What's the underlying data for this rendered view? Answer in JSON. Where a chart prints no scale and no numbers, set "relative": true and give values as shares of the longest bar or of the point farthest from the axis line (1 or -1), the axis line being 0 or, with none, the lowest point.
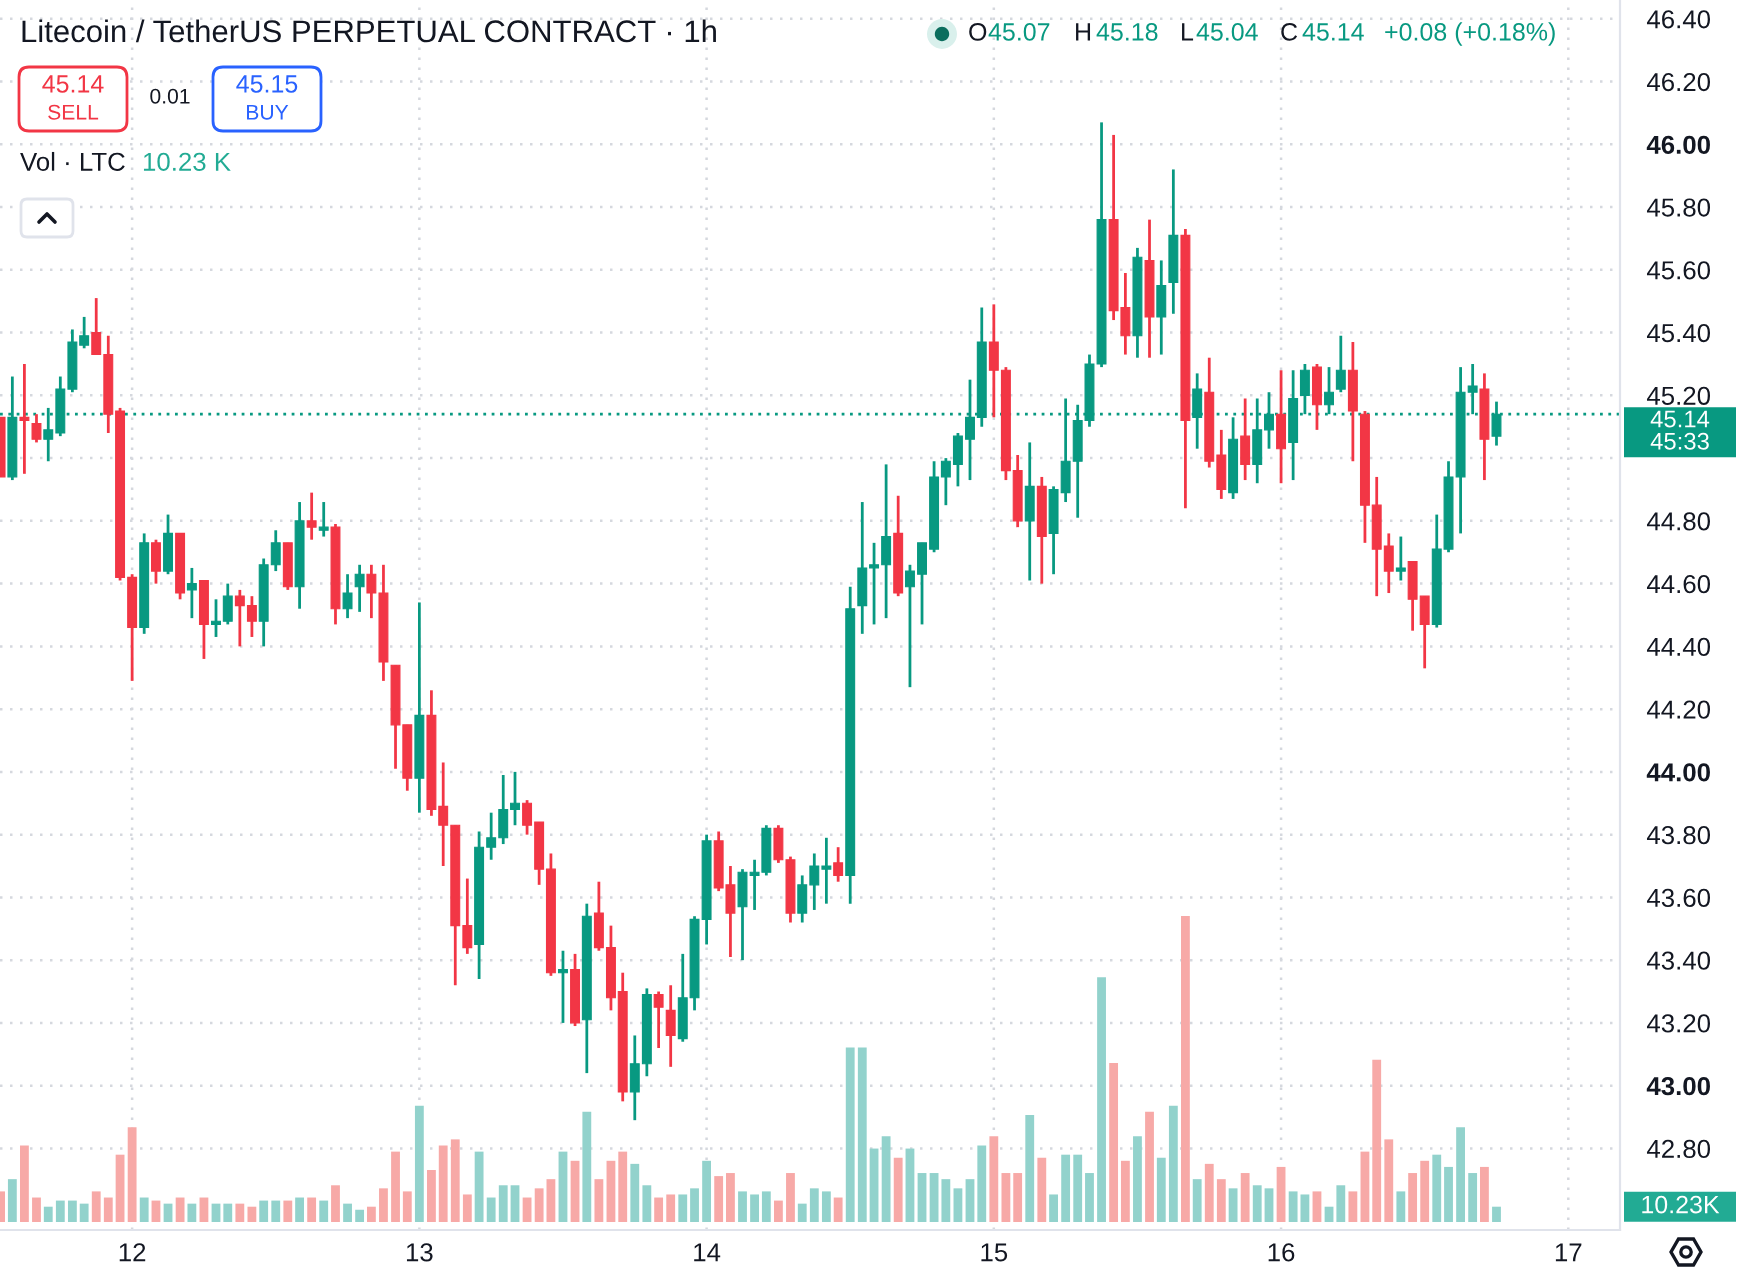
{
  "chart_data": [
    {
      "type": "candlestick",
      "title": "Litecoin / TetherUS PERPETUAL CONTRACT · 1h",
      "x": [
        11.542,
        11.583,
        11.625,
        11.667,
        11.708,
        11.75,
        11.792,
        11.833,
        11.875,
        11.917,
        11.958,
        12,
        12.042,
        12.083,
        12.125,
        12.167,
        12.208,
        12.25,
        12.292,
        12.333,
        12.375,
        12.417,
        12.458,
        12.5,
        12.542,
        12.583,
        12.625,
        12.667,
        12.708,
        12.75,
        12.792,
        12.833,
        12.875,
        12.917,
        12.958,
        13,
        13.042,
        13.083,
        13.125,
        13.167,
        13.208,
        13.25,
        13.292,
        13.333,
        13.375,
        13.417,
        13.458,
        13.5,
        13.542,
        13.583,
        13.625,
        13.667,
        13.708,
        13.75,
        13.792,
        13.833,
        13.875,
        13.917,
        13.958,
        14,
        14.042,
        14.083,
        14.125,
        14.167,
        14.208,
        14.25,
        14.292,
        14.333,
        14.375,
        14.417,
        14.458,
        14.5,
        14.542,
        14.583,
        14.625,
        14.667,
        14.708,
        14.75,
        14.792,
        14.833,
        14.875,
        14.917,
        14.958,
        15,
        15.042,
        15.083,
        15.125,
        15.167,
        15.208,
        15.25,
        15.292,
        15.333,
        15.375,
        15.417,
        15.458,
        15.5,
        15.542,
        15.583,
        15.625,
        15.667,
        15.708,
        15.75,
        15.792,
        15.833,
        15.875,
        15.917,
        15.958,
        16,
        16.042,
        16.083,
        16.125,
        16.167,
        16.208,
        16.25,
        16.292,
        16.333,
        16.375,
        16.417,
        16.458,
        16.5,
        16.542,
        16.583,
        16.625,
        16.667,
        16.708,
        16.75
      ],
      "ohlc": [
        [
          45.13,
          45.13,
          44.94,
          44.94
        ],
        [
          44.94,
          45.26,
          44.93,
          45.13
        ],
        [
          45.13,
          45.3,
          44.95,
          45.12
        ],
        [
          45.11,
          45.14,
          45.05,
          45.06
        ],
        [
          45.06,
          45.16,
          44.99,
          45.09
        ],
        [
          45.08,
          45.26,
          45.07,
          45.22
        ],
        [
          45.22,
          45.41,
          45.21,
          45.37
        ],
        [
          45.36,
          45.45,
          45.35,
          45.39
        ],
        [
          45.4,
          45.51,
          45.33,
          45.33
        ],
        [
          45.33,
          45.39,
          45.08,
          45.14
        ],
        [
          45.15,
          45.16,
          44.61,
          44.62
        ],
        [
          44.62,
          44.63,
          44.29,
          44.46
        ],
        [
          44.46,
          44.76,
          44.44,
          44.73
        ],
        [
          44.73,
          44.74,
          44.6,
          44.64
        ],
        [
          44.64,
          44.82,
          44.63,
          44.76
        ],
        [
          44.76,
          44.76,
          44.55,
          44.57
        ],
        [
          44.58,
          44.65,
          44.49,
          44.6
        ],
        [
          44.61,
          44.61,
          44.36,
          44.47
        ],
        [
          44.47,
          44.55,
          44.43,
          44.48
        ],
        [
          44.48,
          44.6,
          44.47,
          44.56
        ],
        [
          44.56,
          44.58,
          44.4,
          44.53
        ],
        [
          44.53,
          44.56,
          44.43,
          44.48
        ],
        [
          44.48,
          44.68,
          44.4,
          44.66
        ],
        [
          44.66,
          44.77,
          44.64,
          44.73
        ],
        [
          44.73,
          44.73,
          44.58,
          44.59
        ],
        [
          44.59,
          44.86,
          44.52,
          44.8
        ],
        [
          44.8,
          44.89,
          44.74,
          44.78
        ],
        [
          44.77,
          44.86,
          44.75,
          44.78
        ],
        [
          44.78,
          44.79,
          44.47,
          44.52
        ],
        [
          44.52,
          44.63,
          44.49,
          44.57
        ],
        [
          44.59,
          44.66,
          44.51,
          44.63
        ],
        [
          44.63,
          44.66,
          44.49,
          44.57
        ],
        [
          44.57,
          44.66,
          44.29,
          44.35
        ],
        [
          44.34,
          44.34,
          44.01,
          44.15
        ],
        [
          44.15,
          44.15,
          43.94,
          43.98
        ],
        [
          43.98,
          44.54,
          43.87,
          44.18
        ],
        [
          44.18,
          44.26,
          43.86,
          43.88
        ],
        [
          43.89,
          44.03,
          43.7,
          43.83
        ],
        [
          43.83,
          43.83,
          43.32,
          43.51
        ],
        [
          43.51,
          43.66,
          43.42,
          43.44
        ],
        [
          43.45,
          43.81,
          43.34,
          43.76
        ],
        [
          43.76,
          43.87,
          43.72,
          43.79
        ],
        [
          43.79,
          43.99,
          43.77,
          43.88
        ],
        [
          43.88,
          44.0,
          43.83,
          43.9
        ],
        [
          43.9,
          43.91,
          43.8,
          43.83
        ],
        [
          43.84,
          43.84,
          43.64,
          43.69
        ],
        [
          43.69,
          43.74,
          43.35,
          43.36
        ],
        [
          43.36,
          43.43,
          43.2,
          43.37
        ],
        [
          43.37,
          43.42,
          43.19,
          43.2
        ],
        [
          43.21,
          43.58,
          43.04,
          43.54
        ],
        [
          43.55,
          43.65,
          43.43,
          43.44
        ],
        [
          43.44,
          43.51,
          43.24,
          43.28
        ],
        [
          43.3,
          43.36,
          42.95,
          42.98
        ],
        [
          42.98,
          43.16,
          42.89,
          43.07
        ],
        [
          43.07,
          43.31,
          43.03,
          43.29
        ],
        [
          43.29,
          43.3,
          43.12,
          43.25
        ],
        [
          43.24,
          43.32,
          43.06,
          43.16
        ],
        [
          43.15,
          43.42,
          43.14,
          43.28
        ],
        [
          43.28,
          43.54,
          43.24,
          43.53
        ],
        [
          43.53,
          43.8,
          43.45,
          43.78
        ],
        [
          43.78,
          43.81,
          43.62,
          43.63
        ],
        [
          43.64,
          43.7,
          43.41,
          43.55
        ],
        [
          43.57,
          43.69,
          43.4,
          43.68
        ],
        [
          43.67,
          43.72,
          43.56,
          43.68
        ],
        [
          43.68,
          43.83,
          43.67,
          43.82
        ],
        [
          43.82,
          43.83,
          43.71,
          43.72
        ],
        [
          43.72,
          43.73,
          43.52,
          43.55
        ],
        [
          43.55,
          43.67,
          43.52,
          43.64
        ],
        [
          43.64,
          43.74,
          43.56,
          43.7
        ],
        [
          43.69,
          43.79,
          43.58,
          43.7
        ],
        [
          43.71,
          43.76,
          43.65,
          43.67
        ],
        [
          43.67,
          44.59,
          43.58,
          44.52
        ],
        [
          44.53,
          44.86,
          44.44,
          44.65
        ],
        [
          44.65,
          44.73,
          44.47,
          44.66
        ],
        [
          44.66,
          44.98,
          44.49,
          44.75
        ],
        [
          44.76,
          44.88,
          44.56,
          44.57
        ],
        [
          44.59,
          44.66,
          44.27,
          44.64
        ],
        [
          44.63,
          44.73,
          44.47,
          44.73
        ],
        [
          44.71,
          44.99,
          44.7,
          44.94
        ],
        [
          44.94,
          45.0,
          44.85,
          44.99
        ],
        [
          44.98,
          45.08,
          44.91,
          45.07
        ],
        [
          45.06,
          45.25,
          44.93,
          45.13
        ],
        [
          45.13,
          45.48,
          45.1,
          45.37
        ],
        [
          45.37,
          45.49,
          45.13,
          45.28
        ],
        [
          45.28,
          45.29,
          44.93,
          44.96
        ],
        [
          44.96,
          45.01,
          44.78,
          44.8
        ],
        [
          44.8,
          45.05,
          44.61,
          44.91
        ],
        [
          44.91,
          44.94,
          44.6,
          44.75
        ],
        [
          44.76,
          44.91,
          44.63,
          44.9
        ],
        [
          44.89,
          45.19,
          44.86,
          44.99
        ],
        [
          44.99,
          45.17,
          44.81,
          45.12
        ],
        [
          45.12,
          45.33,
          45.1,
          45.3
        ],
        [
          45.3,
          46.07,
          45.29,
          45.76
        ],
        [
          45.76,
          46.03,
          45.44,
          45.47
        ],
        [
          45.48,
          45.59,
          45.33,
          45.39
        ],
        [
          45.39,
          45.67,
          45.32,
          45.64
        ],
        [
          45.63,
          45.76,
          45.32,
          45.45
        ],
        [
          45.45,
          45.63,
          45.33,
          45.55
        ],
        [
          45.56,
          45.92,
          45.46,
          45.71
        ],
        [
          45.71,
          45.73,
          44.84,
          45.12
        ],
        [
          45.13,
          45.27,
          45.03,
          45.22
        ],
        [
          45.21,
          45.32,
          44.97,
          44.99
        ],
        [
          45.01,
          45.09,
          44.87,
          44.9
        ],
        [
          44.89,
          45.13,
          44.87,
          45.06
        ],
        [
          45.07,
          45.19,
          44.93,
          44.98
        ],
        [
          44.98,
          45.19,
          44.92,
          45.09
        ],
        [
          45.09,
          45.21,
          45.03,
          45.14
        ],
        [
          45.14,
          45.28,
          44.92,
          45.03
        ],
        [
          45.05,
          45.28,
          44.93,
          45.19
        ],
        [
          45.2,
          45.3,
          45.14,
          45.28
        ],
        [
          45.29,
          45.3,
          45.09,
          45.17
        ],
        [
          45.17,
          45.29,
          45.14,
          45.21
        ],
        [
          45.22,
          45.39,
          45.21,
          45.28
        ],
        [
          45.28,
          45.37,
          44.99,
          45.15
        ],
        [
          45.14,
          45.15,
          44.73,
          44.85
        ],
        [
          44.85,
          44.94,
          44.56,
          44.71
        ],
        [
          44.72,
          44.76,
          44.57,
          44.64
        ],
        [
          44.64,
          44.75,
          44.61,
          44.65
        ],
        [
          44.67,
          44.67,
          44.45,
          44.55
        ],
        [
          44.56,
          44.56,
          44.33,
          44.47
        ],
        [
          44.47,
          44.82,
          44.46,
          44.71
        ],
        [
          44.71,
          44.99,
          44.7,
          44.94
        ],
        [
          44.94,
          45.29,
          44.76,
          45.21
        ],
        [
          45.21,
          45.3,
          45.14,
          45.23
        ],
        [
          45.22,
          45.27,
          44.93,
          45.06
        ],
        [
          45.07,
          45.18,
          45.04,
          45.14
        ]
      ],
      "colors": [
        "#f23645",
        "#089981",
        "#f23645",
        "#f23645",
        "#089981",
        "#089981",
        "#089981",
        "#089981",
        "#f23645",
        "#f23645",
        "#f23645",
        "#f23645",
        "#089981",
        "#f23645",
        "#089981",
        "#f23645",
        "#089981",
        "#f23645",
        "#089981",
        "#089981",
        "#f23645",
        "#f23645",
        "#089981",
        "#089981",
        "#f23645",
        "#089981",
        "#f23645",
        "#089981",
        "#f23645",
        "#089981",
        "#089981",
        "#f23645",
        "#f23645",
        "#f23645",
        "#f23645",
        "#089981",
        "#f23645",
        "#f23645",
        "#f23645",
        "#f23645",
        "#089981",
        "#089981",
        "#089981",
        "#089981",
        "#f23645",
        "#f23645",
        "#f23645",
        "#089981",
        "#f23645",
        "#089981",
        "#f23645",
        "#f23645",
        "#f23645",
        "#089981",
        "#089981",
        "#f23645",
        "#f23645",
        "#089981",
        "#089981",
        "#089981",
        "#f23645",
        "#f23645",
        "#089981",
        "#089981",
        "#089981",
        "#f23645",
        "#f23645",
        "#089981",
        "#089981",
        "#089981",
        "#f23645",
        "#089981",
        "#089981",
        "#089981",
        "#089981",
        "#f23645",
        "#089981",
        "#089981",
        "#089981",
        "#089981",
        "#089981",
        "#089981",
        "#089981",
        "#f23645",
        "#f23645",
        "#f23645",
        "#089981",
        "#f23645",
        "#089981",
        "#089981",
        "#089981",
        "#089981",
        "#089981",
        "#f23645",
        "#f23645",
        "#089981",
        "#f23645",
        "#089981",
        "#089981",
        "#f23645",
        "#089981",
        "#f23645",
        "#f23645",
        "#089981",
        "#f23645",
        "#089981",
        "#089981",
        "#f23645",
        "#089981",
        "#089981",
        "#f23645",
        "#089981",
        "#089981",
        "#f23645",
        "#f23645",
        "#f23645",
        "#f23645",
        "#089981",
        "#f23645",
        "#f23645",
        "#089981",
        "#089981",
        "#089981",
        "#089981",
        "#f23645",
        "#089981"
      ],
      "xlim": [
        11.54,
        17.18
      ],
      "xticks": [
        12,
        13,
        14,
        15,
        16,
        17
      ],
      "ylim": [
        42.54,
        46.46
      ],
      "yticks": [
        {
          "value": 42.8,
          "label": "42.80"
        },
        {
          "value": 43.0,
          "label": "43.00"
        },
        {
          "value": 43.2,
          "label": "43.20"
        },
        {
          "value": 43.4,
          "label": "43.40"
        },
        {
          "value": 43.6,
          "label": "43.60"
        },
        {
          "value": 43.8,
          "label": "43.80"
        },
        {
          "value": 44.0,
          "label": "44.00"
        },
        {
          "value": 44.2,
          "label": "44.20"
        },
        {
          "value": 44.4,
          "label": "44.40"
        },
        {
          "value": 44.6,
          "label": "44.60"
        },
        {
          "value": 44.8,
          "label": "44.80"
        },
        {
          "value": 45.0,
          "label": null
        },
        {
          "value": 45.2,
          "label": "45.20"
        },
        {
          "value": 45.4,
          "label": "45.40"
        },
        {
          "value": 45.6,
          "label": "45.60"
        },
        {
          "value": 45.8,
          "label": "45.80"
        },
        {
          "value": 46.0,
          "label": "46.00"
        },
        {
          "value": 46.2,
          "label": "46.20"
        },
        {
          "value": 46.4,
          "label": "46.40"
        }
      ],
      "grid": true,
      "ref_lines": [
        {
          "axis": "y",
          "value": 45.14,
          "label": "45.14\n45:33",
          "color": "#089981",
          "line_style": "dotted"
        }
      ],
      "annotations": [
        "O",
        "45.07",
        "H",
        "45.18",
        "L",
        "45.04",
        "C",
        "45.14",
        "+0.08 (+0.18%)",
        "45.14",
        "SELL",
        "0.01",
        "45.15",
        "BUY"
      ]
    },
    {
      "type": "bar",
      "relative": true,
      "title": "Vol · LTC",
      "x": [
        11.542,
        11.583,
        11.625,
        11.667,
        11.708,
        11.75,
        11.792,
        11.833,
        11.875,
        11.917,
        11.958,
        12,
        12.042,
        12.083,
        12.125,
        12.167,
        12.208,
        12.25,
        12.292,
        12.333,
        12.375,
        12.417,
        12.458,
        12.5,
        12.542,
        12.583,
        12.625,
        12.667,
        12.708,
        12.75,
        12.792,
        12.833,
        12.875,
        12.917,
        12.958,
        13,
        13.042,
        13.083,
        13.125,
        13.167,
        13.208,
        13.25,
        13.292,
        13.333,
        13.375,
        13.417,
        13.458,
        13.5,
        13.542,
        13.583,
        13.625,
        13.667,
        13.708,
        13.75,
        13.792,
        13.833,
        13.875,
        13.917,
        13.958,
        14,
        14.042,
        14.083,
        14.125,
        14.167,
        14.208,
        14.25,
        14.292,
        14.333,
        14.375,
        14.417,
        14.458,
        14.5,
        14.542,
        14.583,
        14.625,
        14.667,
        14.708,
        14.75,
        14.792,
        14.833,
        14.875,
        14.917,
        14.958,
        15,
        15.042,
        15.083,
        15.125,
        15.167,
        15.208,
        15.25,
        15.292,
        15.333,
        15.375,
        15.417,
        15.458,
        15.5,
        15.542,
        15.583,
        15.625,
        15.667,
        15.708,
        15.75,
        15.792,
        15.833,
        15.875,
        15.917,
        15.958,
        16,
        16.042,
        16.083,
        16.125,
        16.167,
        16.208,
        16.25,
        16.292,
        16.333,
        16.375,
        16.417,
        16.458,
        16.5,
        16.542,
        16.583,
        16.625,
        16.667,
        16.708,
        16.75
      ],
      "values": [
        0.1,
        0.14,
        0.25,
        0.08,
        0.05,
        0.07,
        0.07,
        0.06,
        0.1,
        0.08,
        0.22,
        0.31,
        0.08,
        0.07,
        0.06,
        0.08,
        0.06,
        0.08,
        0.06,
        0.06,
        0.06,
        0.05,
        0.07,
        0.07,
        0.07,
        0.08,
        0.08,
        0.07,
        0.12,
        0.06,
        0.04,
        0.05,
        0.11,
        0.23,
        0.1,
        0.38,
        0.17,
        0.25,
        0.27,
        0.09,
        0.23,
        0.08,
        0.12,
        0.12,
        0.08,
        0.11,
        0.14,
        0.23,
        0.2,
        0.36,
        0.14,
        0.2,
        0.23,
        0.19,
        0.12,
        0.08,
        0.09,
        0.09,
        0.11,
        0.2,
        0.15,
        0.16,
        0.1,
        0.09,
        0.1,
        0.07,
        0.16,
        0.06,
        0.11,
        0.1,
        0.08,
        0.57,
        0.57,
        0.24,
        0.28,
        0.21,
        0.24,
        0.16,
        0.16,
        0.14,
        0.11,
        0.14,
        0.25,
        0.28,
        0.16,
        0.16,
        0.35,
        0.21,
        0.09,
        0.22,
        0.22,
        0.16,
        0.8,
        0.52,
        0.2,
        0.28,
        0.36,
        0.21,
        0.38,
        1,
        0.14,
        0.19,
        0.14,
        0.11,
        0.16,
        0.12,
        0.11,
        0.18,
        0.1,
        0.09,
        0.1,
        0.05,
        0.12,
        0.1,
        0.23,
        0.53,
        0.27,
        0.1,
        0.16,
        0.2,
        0.22,
        0.18,
        0.31,
        0.16,
        0.18,
        0.05
      ],
      "colors": [
        "#f7a9a7",
        "#92d2cc",
        "#f7a9a7",
        "#f7a9a7",
        "#92d2cc",
        "#92d2cc",
        "#92d2cc",
        "#92d2cc",
        "#f7a9a7",
        "#f7a9a7",
        "#f7a9a7",
        "#f7a9a7",
        "#92d2cc",
        "#f7a9a7",
        "#92d2cc",
        "#f7a9a7",
        "#92d2cc",
        "#f7a9a7",
        "#92d2cc",
        "#92d2cc",
        "#f7a9a7",
        "#f7a9a7",
        "#92d2cc",
        "#92d2cc",
        "#f7a9a7",
        "#92d2cc",
        "#f7a9a7",
        "#92d2cc",
        "#f7a9a7",
        "#92d2cc",
        "#92d2cc",
        "#f7a9a7",
        "#f7a9a7",
        "#f7a9a7",
        "#f7a9a7",
        "#92d2cc",
        "#f7a9a7",
        "#f7a9a7",
        "#f7a9a7",
        "#f7a9a7",
        "#92d2cc",
        "#92d2cc",
        "#92d2cc",
        "#92d2cc",
        "#f7a9a7",
        "#f7a9a7",
        "#f7a9a7",
        "#92d2cc",
        "#f7a9a7",
        "#92d2cc",
        "#f7a9a7",
        "#f7a9a7",
        "#f7a9a7",
        "#92d2cc",
        "#92d2cc",
        "#f7a9a7",
        "#f7a9a7",
        "#92d2cc",
        "#92d2cc",
        "#92d2cc",
        "#f7a9a7",
        "#f7a9a7",
        "#92d2cc",
        "#92d2cc",
        "#92d2cc",
        "#f7a9a7",
        "#f7a9a7",
        "#92d2cc",
        "#92d2cc",
        "#92d2cc",
        "#f7a9a7",
        "#92d2cc",
        "#92d2cc",
        "#92d2cc",
        "#92d2cc",
        "#f7a9a7",
        "#92d2cc",
        "#92d2cc",
        "#92d2cc",
        "#92d2cc",
        "#92d2cc",
        "#92d2cc",
        "#92d2cc",
        "#f7a9a7",
        "#f7a9a7",
        "#f7a9a7",
        "#92d2cc",
        "#f7a9a7",
        "#92d2cc",
        "#92d2cc",
        "#92d2cc",
        "#92d2cc",
        "#92d2cc",
        "#f7a9a7",
        "#f7a9a7",
        "#92d2cc",
        "#f7a9a7",
        "#92d2cc",
        "#92d2cc",
        "#f7a9a7",
        "#92d2cc",
        "#f7a9a7",
        "#f7a9a7",
        "#92d2cc",
        "#f7a9a7",
        "#92d2cc",
        "#92d2cc",
        "#f7a9a7",
        "#92d2cc",
        "#92d2cc",
        "#f7a9a7",
        "#92d2cc",
        "#92d2cc",
        "#f7a9a7",
        "#f7a9a7",
        "#f7a9a7",
        "#f7a9a7",
        "#92d2cc",
        "#f7a9a7",
        "#f7a9a7",
        "#92d2cc",
        "#92d2cc",
        "#92d2cc",
        "#92d2cc",
        "#f7a9a7",
        "#92d2cc"
      ],
      "xlim": [
        11.54,
        17.18
      ],
      "xticks": [
        12,
        13,
        14,
        15,
        16,
        17
      ],
      "tick_labels": false,
      "annotations": [
        "10.23 K",
        "10.23K"
      ]
    }
  ]
}
